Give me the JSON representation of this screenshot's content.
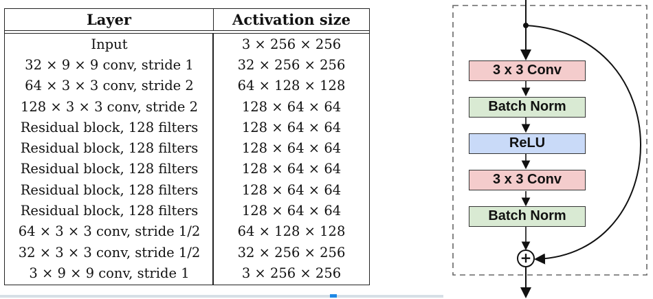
{
  "table": {
    "headers": [
      "Layer",
      "Activation size"
    ],
    "rows": [
      [
        "Input",
        "3 × 256 × 256"
      ],
      [
        "32 × 9 × 9 conv, stride 1",
        "32 × 256 × 256"
      ],
      [
        "64 × 3 × 3 conv, stride 2",
        "64 × 128 × 128"
      ],
      [
        "128 × 3 × 3 conv, stride 2",
        "128 × 64 × 64"
      ],
      [
        "Residual block, 128 filters",
        "128 × 64 × 64"
      ],
      [
        "Residual block, 128 filters",
        "128 × 64 × 64"
      ],
      [
        "Residual block, 128 filters",
        "128 × 64 × 64"
      ],
      [
        "Residual block, 128 filters",
        "128 × 64 × 64"
      ],
      [
        "Residual block, 128 filters",
        "128 × 64 × 64"
      ],
      [
        "64 × 3 × 3 conv, stride 1/2",
        "64 × 128 × 128"
      ],
      [
        "32 × 3 × 3 conv, stride 1/2",
        "32 × 256 × 256"
      ],
      [
        "3 × 9 × 9 conv, stride 1",
        "3 × 256 × 256"
      ]
    ]
  },
  "block": {
    "layers": [
      {
        "label": "3 x 3 Conv",
        "color": "#f4cccc"
      },
      {
        "label": "Batch Norm",
        "color": "#d9ead3"
      },
      {
        "label": "ReLU",
        "color": "#c9daf8"
      },
      {
        "label": "3 x 3 Conv",
        "color": "#f4cccc"
      },
      {
        "label": "Batch Norm",
        "color": "#d9ead3"
      }
    ],
    "sum_symbol": "+"
  }
}
